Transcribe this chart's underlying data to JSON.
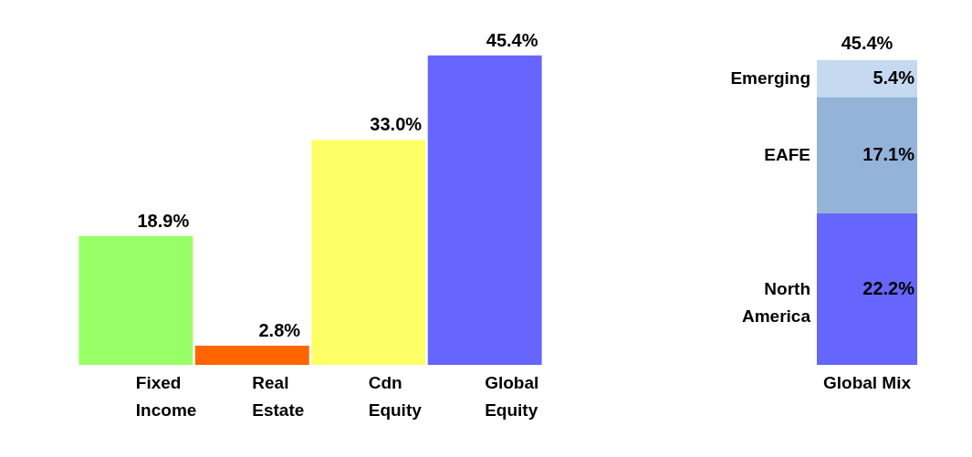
{
  "chart_data": [
    {
      "type": "bar",
      "categories": [
        "Fixed Income",
        "Real Estate",
        "Cdn Equity",
        "Global Equity"
      ],
      "values": [
        18.9,
        2.8,
        33.0,
        45.4
      ],
      "colors": [
        "#99ff66",
        "#ff6600",
        "#ffff66",
        "#6666ff"
      ],
      "value_labels": [
        "18.9%",
        "2.8%",
        "33.0%",
        "45.4%"
      ],
      "tick_labels": "x"
    },
    {
      "type": "bar",
      "stacked": true,
      "categories": [
        "Global Mix"
      ],
      "tick_labels": "x",
      "annotations": [
        "45.4%"
      ],
      "series": [
        {
          "name": "North America",
          "color": "#6666ff",
          "values": [
            22.2
          ],
          "value_labels": [
            "22.2%"
          ]
        },
        {
          "name": "EAFE",
          "color": "#94b3d9",
          "values": [
            17.1
          ],
          "value_labels": [
            "17.1%"
          ]
        },
        {
          "name": "Emerging",
          "color": "#c5d9f1",
          "values": [
            5.4
          ],
          "value_labels": [
            "5.4%"
          ]
        }
      ]
    }
  ]
}
